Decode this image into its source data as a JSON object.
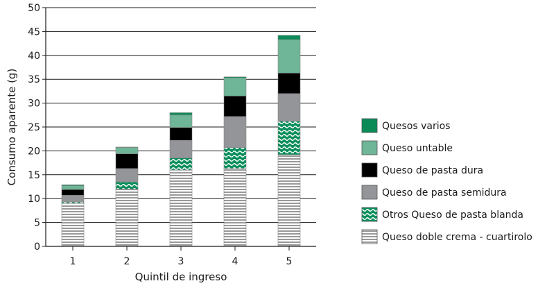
{
  "chart_data": {
    "type": "bar",
    "stacked": true,
    "title": "",
    "xlabel": "Quintil de ingreso",
    "ylabel": "Consumo aparente (g)",
    "categories": [
      "1",
      "2",
      "3",
      "4",
      "5"
    ],
    "ylim": [
      0,
      50
    ],
    "yticks": [
      "0",
      "5",
      "10",
      "15",
      "20",
      "25",
      "30",
      "35",
      "40",
      "45",
      "50"
    ],
    "grid": "horizontal",
    "legend_position": "right",
    "series": [
      {
        "name": "Queso doble crema - cuartirolo",
        "values": [
          9.0,
          12.0,
          16.0,
          16.3,
          19.2
        ],
        "color": "#ffffff",
        "pattern": "horizontal-lines"
      },
      {
        "name": "Otros Queso de pasta blanda",
        "values": [
          0.3,
          1.5,
          2.5,
          4.4,
          7.0
        ],
        "color": "#0a8f5c",
        "pattern": "waves"
      },
      {
        "name": "Queso de pasta semidura",
        "values": [
          1.4,
          2.8,
          3.7,
          6.5,
          5.8
        ],
        "color": "#939598",
        "pattern": "solid"
      },
      {
        "name": "Queso de pasta dura",
        "values": [
          1.2,
          3.1,
          2.7,
          4.3,
          4.3
        ],
        "color": "#000000",
        "pattern": "solid"
      },
      {
        "name": "Queso untable",
        "values": [
          0.8,
          1.3,
          2.6,
          3.8,
          7.0
        ],
        "color": "#6fb597",
        "pattern": "solid"
      },
      {
        "name": "Quesos varios",
        "values": [
          0.2,
          0.1,
          0.5,
          0.2,
          0.9
        ],
        "color": "#0b8a57",
        "pattern": "solid"
      }
    ]
  }
}
